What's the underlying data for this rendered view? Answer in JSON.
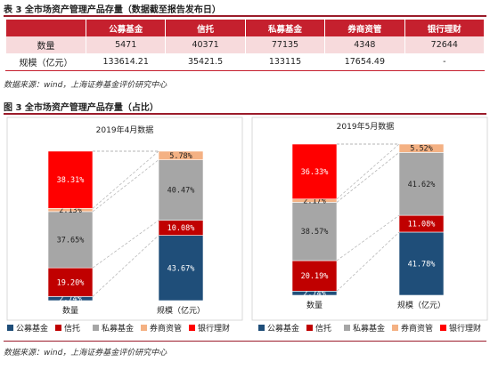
{
  "table": {
    "caption": "表 3  全市场资产管理产品存量（数据截至报告发布日）",
    "headers": [
      "",
      "公募基金",
      "信托",
      "私募基金",
      "券商资管",
      "银行理财"
    ],
    "rows": [
      {
        "label": "数量",
        "values": [
          "5471",
          "40371",
          "77135",
          "4348",
          "72644"
        ]
      },
      {
        "label": "规模（亿元）",
        "values": [
          "133614.21",
          "35421.5",
          "133115",
          "17654.49",
          "-"
        ]
      }
    ],
    "source": "数据来源：wind，上海证券基金评价研究中心"
  },
  "figure": {
    "caption": "图 3  全市场资产管理产品存量（占比）",
    "source": "数据来源：wind，上海证券基金评价研究中心"
  },
  "chart_data": [
    {
      "type": "bar",
      "title": "2019年4月数据",
      "categories": [
        "数量",
        "规模（亿元）"
      ],
      "series": [
        {
          "name": "公募基金",
          "values": [
            2.74,
            43.67
          ],
          "labels": [
            "2.74%",
            "43.67%"
          ]
        },
        {
          "name": "信托",
          "values": [
            19.2,
            10.08
          ],
          "labels": [
            "19.20%",
            "10.08%"
          ]
        },
        {
          "name": "私募基金",
          "values": [
            37.65,
            40.47
          ],
          "labels": [
            "37.65%",
            "40.47%"
          ]
        },
        {
          "name": "券商资管",
          "values": [
            2.13,
            5.78
          ],
          "labels": [
            "2.13%",
            "5.78%"
          ]
        },
        {
          "name": "银行理财",
          "values": [
            38.31,
            0
          ],
          "labels": [
            "38.31%",
            ""
          ]
        }
      ]
    },
    {
      "type": "bar",
      "title": "2019年5月数据",
      "categories": [
        "数量",
        "规模（亿元）"
      ],
      "series": [
        {
          "name": "公募基金",
          "values": [
            2.74,
            41.78
          ],
          "labels": [
            "2.74%",
            "41.78%"
          ]
        },
        {
          "name": "信托",
          "values": [
            20.19,
            11.08
          ],
          "labels": [
            "20.19%",
            "11.08%"
          ]
        },
        {
          "name": "私募基金",
          "values": [
            38.57,
            41.62
          ],
          "labels": [
            "38.57%",
            "41.62%"
          ]
        },
        {
          "name": "券商资管",
          "values": [
            2.17,
            5.52
          ],
          "labels": [
            "2.17%",
            "5.52%"
          ]
        },
        {
          "name": "银行理财",
          "values": [
            36.33,
            0
          ],
          "labels": [
            "36.33%",
            ""
          ]
        }
      ]
    }
  ],
  "legend": [
    {
      "name": "公募基金",
      "color": "#1f4e79"
    },
    {
      "name": "信托",
      "color": "#c00000"
    },
    {
      "name": "私募基金",
      "color": "#a6a6a6"
    },
    {
      "name": "券商资管",
      "color": "#f4b183"
    },
    {
      "name": "银行理财",
      "color": "#ff0000"
    }
  ],
  "colors": {
    "公募基金": "#1f4e79",
    "信托": "#c00000",
    "私募基金": "#a6a6a6",
    "券商资管": "#f4b183",
    "银行理财": "#ff0000",
    "accent": "#c5202e"
  }
}
